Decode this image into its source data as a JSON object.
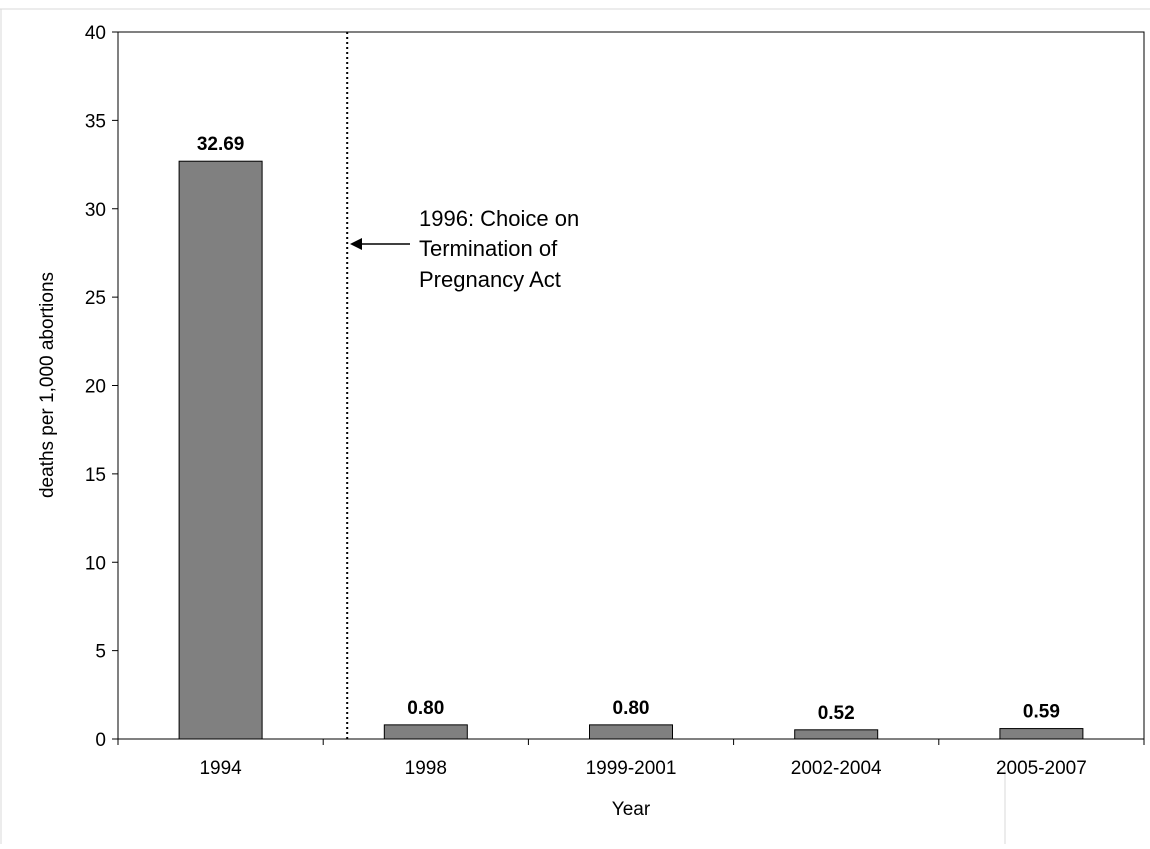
{
  "chart_data": {
    "type": "bar",
    "title": "",
    "xlabel": "Year",
    "ylabel": "deaths per 1,000 abortions",
    "categories": [
      "1994",
      "1998",
      "1999-2001",
      "2002-2004",
      "2005-2007"
    ],
    "values": [
      32.69,
      0.8,
      0.8,
      0.52,
      0.59
    ],
    "data_labels": [
      "32.69",
      "0.80",
      "0.80",
      "0.52",
      "0.59"
    ],
    "ylim": [
      0,
      40
    ],
    "yticks": [
      0,
      5,
      10,
      15,
      20,
      25,
      30,
      35,
      40
    ],
    "grid": false,
    "legend": "none",
    "bar_color": "#808080",
    "reference_line": {
      "position_between": [
        "1994",
        "1998"
      ],
      "style": "dotted",
      "annotation_lines": [
        "1996: Choice on",
        "Termination of",
        "Pregnancy Act"
      ]
    }
  }
}
